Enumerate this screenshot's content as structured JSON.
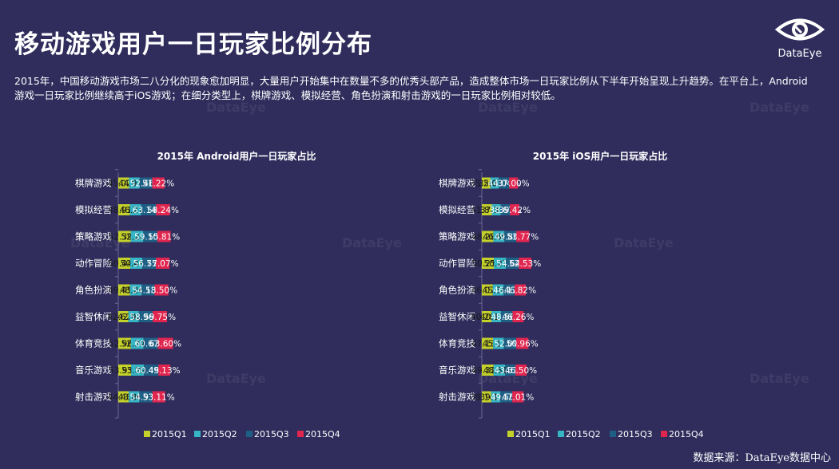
{
  "header": {
    "title": "移动游戏用户一日玩家比例分布",
    "description": "2015年，中国移动游戏市场二八分化的现象愈加明显，大量用户开始集中在数量不多的优秀头部产品，造成整体市场一日玩家比例从下半年开始呈现上升趋势。在平台上，Android游戏一日玩家比例继续高于iOS游戏；在细分类型上，棋牌游戏、模拟经营、角色扮演和射击游戏的一日玩家比例相对较低。",
    "logo_text": "DataEye",
    "source": "数据来源：DataEye数据中心",
    "watermark": "DataEye"
  },
  "colors": {
    "background": "#302d5c",
    "Q1": "#c4d12a",
    "Q2": "#36b5c4",
    "Q3": "#1e5f85",
    "Q4": "#e0254f"
  },
  "chart_data": [
    {
      "type": "bar",
      "stacked": true,
      "orientation": "horizontal",
      "title": "2015年 Android用户一日玩家占比",
      "categories": [
        "棋牌游戏",
        "模拟经营",
        "策略游戏",
        "动作冒险",
        "角色扮演",
        "益智休闲",
        "体育竞技",
        "音乐游戏",
        "射击游戏"
      ],
      "series": [
        {
          "name": "2015Q1",
          "values": [
            45.02,
            48.91,
            52.39,
            50.44,
            49.45,
            42.62,
            52.96,
            53.95,
            44.48
          ]
        },
        {
          "name": "2015Q2",
          "values": [
            44.91,
            46.27,
            52.2,
            50.49,
            48.26,
            42.92,
            52.34,
            53.89,
            43.86
          ]
        },
        {
          "name": "2015Q3",
          "values": [
            52.46,
            63.14,
            59.1,
            56.75,
            54.13,
            58.96,
            60.67,
            60.45,
            54.93
          ]
        },
        {
          "name": "2015Q4",
          "values": [
            51.22,
            58.24,
            55.81,
            57.07,
            58.5,
            59.75,
            63.6,
            49.13,
            53.11
          ]
        }
      ],
      "legend": "bottom"
    },
    {
      "type": "bar",
      "stacked": true,
      "orientation": "horizontal",
      "title": "2015年 iOS用户一日玩家占比",
      "categories": [
        "棋牌游戏",
        "模拟经营",
        "策略游戏",
        "动作冒险",
        "角色扮演",
        "益智休闲",
        "体育竞技",
        "音乐游戏",
        "射击游戏"
      ],
      "series": [
        {
          "name": "2015Q1",
          "values": [
            35.2,
            41.82,
            48.28,
            50.25,
            46.07,
            40.28,
            47.13,
            49.32,
            39.14
          ]
        },
        {
          "name": "2015Q2",
          "values": [
            35.07,
            37.33,
            46.6,
            50.27,
            45.34,
            40.11,
            45.17,
            48.61,
            39.11
          ]
        },
        {
          "name": "2015Q3",
          "values": [
            44.04,
            38.67,
            49.8,
            54.64,
            46.17,
            48.56,
            52.09,
            43.31,
            49.56
          ]
        },
        {
          "name": "2015Q4",
          "values": [
            37.0,
            39.42,
            53.77,
            52.53,
            46.82,
            46.26,
            50.96,
            46.5,
            47.01
          ]
        }
      ],
      "legend": "bottom"
    }
  ]
}
